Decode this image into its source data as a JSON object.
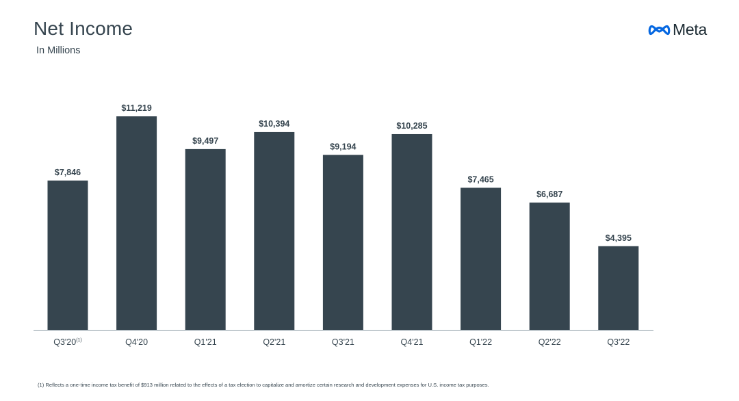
{
  "header": {
    "title": "Net Income",
    "subtitle": "In Millions"
  },
  "logo": {
    "text": "Meta",
    "icon": "meta-infinity-logo-icon",
    "color": "#0668e1"
  },
  "colors": {
    "bar": "#36454f",
    "text": "#36454f",
    "axis": "#8a9aa3"
  },
  "chart_data": {
    "type": "bar",
    "title": "Net Income",
    "subtitle": "In Millions",
    "categories": [
      "Q3'20",
      "Q4'20",
      "Q1'21",
      "Q2'21",
      "Q3'21",
      "Q4'21",
      "Q1'22",
      "Q2'22",
      "Q3'22"
    ],
    "category_superscripts": [
      "(1)",
      "",
      "",
      "",
      "",
      "",
      "",
      "",
      ""
    ],
    "values": [
      7846,
      11219,
      9497,
      10394,
      9194,
      10285,
      7465,
      6687,
      4395
    ],
    "value_labels": [
      "$7,846",
      "$11,219",
      "$9,497",
      "$10,394",
      "$9,194",
      "$10,285",
      "$7,465",
      "$6,687",
      "$4,395"
    ],
    "ylim": [
      0,
      11219
    ],
    "xlabel": "",
    "ylabel": "",
    "grid": false,
    "legend": "none"
  },
  "footnote": "(1) Reflects a one-time income tax benefit of $913 million related to the effects of a tax election to capitalize and amortize certain research and development expenses for U.S. income tax purposes."
}
